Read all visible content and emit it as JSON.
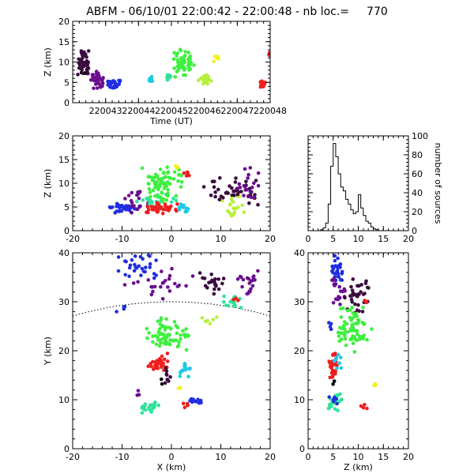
{
  "chart_data": {
    "title": "ABFM - 06/10/01 22:00:42 - 22:00:48 - nb loc.=",
    "nb_loc": "770",
    "type": "scatter",
    "point_marker": "small filled dot",
    "color_scale": "purple → blue → cyan → green → yellow → red by time",
    "colors": {
      "black": "#000000",
      "dark_purple": "#3b0a3d",
      "purple": "#6a0f8e",
      "blue": "#1f2fe0",
      "cyan": "#1ec8e8",
      "teal": "#2fe39a",
      "green": "#3ef03e",
      "yellow_green": "#b6f03a",
      "yellow": "#f0f01e",
      "red": "#f01e1e"
    },
    "panels": [
      {
        "name": "time-height",
        "xlabel": "Time (UT)",
        "ylabel": "Z (km)",
        "xlim": [
          220042,
          220048
        ],
        "ylim": [
          0,
          20
        ],
        "xticks": [
          "220043",
          "220044",
          "220045",
          "220046",
          "220047",
          "220048"
        ],
        "yticks": [
          "0",
          "5",
          "10",
          "15",
          "20"
        ],
        "clusters": [
          {
            "color": "black",
            "x": [
              220042.05,
              220042.5
            ],
            "y": [
              7,
              7.5
            ],
            "n": 3
          },
          {
            "color": "dark_purple",
            "x": [
              220042.1,
              220042.6
            ],
            "y": [
              6,
              13.5
            ],
            "n": 40
          },
          {
            "color": "purple",
            "x": [
              220042.5,
              220043.0
            ],
            "y": [
              3,
              8
            ],
            "n": 35
          },
          {
            "color": "blue",
            "x": [
              220043.0,
              220043.5
            ],
            "y": [
              3.5,
              6
            ],
            "n": 25
          },
          {
            "color": "cyan",
            "x": [
              220044.3,
              220044.45
            ],
            "y": [
              4.5,
              6.5
            ],
            "n": 10
          },
          {
            "color": "teal",
            "x": [
              220044.85,
              220045.0
            ],
            "y": [
              5,
              7.5
            ],
            "n": 10
          },
          {
            "color": "green",
            "x": [
              220045.0,
              220045.7
            ],
            "y": [
              5.5,
              13.5
            ],
            "n": 60
          },
          {
            "color": "yellow_green",
            "x": [
              220045.8,
              220046.3
            ],
            "y": [
              4.5,
              7.5
            ],
            "n": 20
          },
          {
            "color": "yellow",
            "x": [
              220046.2,
              220046.5
            ],
            "y": [
              9,
              13.5
            ],
            "n": 6
          },
          {
            "color": "red",
            "x": [
              220047.7,
              220047.85
            ],
            "y": [
              3.5,
              5.5
            ],
            "n": 20
          },
          {
            "color": "red",
            "x": [
              220047.95,
              220048
            ],
            "y": [
              11,
              12.5
            ],
            "n": 5
          }
        ]
      },
      {
        "name": "x-z",
        "xlabel": "",
        "ylabel": "Z (km)",
        "xlim": [
          -20,
          20
        ],
        "ylim": [
          0,
          20
        ],
        "xticks": [
          "-20",
          "-10",
          "0",
          "10",
          "20"
        ],
        "yticks": [
          "0",
          "5",
          "10",
          "15",
          "20"
        ],
        "clusters": [
          {
            "color": "blue",
            "x": [
              -13,
              -6
            ],
            "y": [
              3.5,
              6
            ],
            "n": 40
          },
          {
            "color": "purple",
            "x": [
              -10,
              -4
            ],
            "y": [
              3.5,
              9
            ],
            "n": 20
          },
          {
            "color": "teal",
            "x": [
              -8,
              2
            ],
            "y": [
              5,
              8
            ],
            "n": 20
          },
          {
            "color": "green",
            "x": [
              -7,
              3
            ],
            "y": [
              6,
              14
            ],
            "n": 70
          },
          {
            "color": "red",
            "x": [
              -6,
              2
            ],
            "y": [
              3.5,
              6
            ],
            "n": 35
          },
          {
            "color": "red",
            "x": [
              2,
              4
            ],
            "y": [
              11,
              12.5
            ],
            "n": 5
          },
          {
            "color": "cyan",
            "x": [
              1,
              4
            ],
            "y": [
              3.5,
              6
            ],
            "n": 12
          },
          {
            "color": "yellow_green",
            "x": [
              10,
              15
            ],
            "y": [
              2.5,
              8
            ],
            "n": 20
          },
          {
            "color": "yellow",
            "x": [
              0,
              2
            ],
            "y": [
              13,
              14
            ],
            "n": 3
          },
          {
            "color": "dark_purple",
            "x": [
              5,
              19
            ],
            "y": [
              5,
              12
            ],
            "n": 40
          },
          {
            "color": "purple",
            "x": [
              12,
              19
            ],
            "y": [
              6,
              14
            ],
            "n": 20
          }
        ]
      },
      {
        "name": "histogram",
        "type": "step",
        "xlabel": "",
        "ylabel": "number of sources",
        "ylabel_side": "right",
        "xlim": [
          0,
          20
        ],
        "ylim": [
          0,
          100
        ],
        "xticks": [
          "0",
          "5",
          "10",
          "15",
          "20"
        ],
        "yticks": [
          "0",
          "20",
          "40",
          "60",
          "80",
          "100"
        ],
        "bin_width": 0.5,
        "bin_start": 2.5,
        "values": [
          1,
          3,
          8,
          28,
          68,
          92,
          78,
          60,
          46,
          42,
          33,
          28,
          22,
          18,
          20,
          38,
          24,
          16,
          10,
          8,
          4,
          2,
          1,
          0
        ]
      },
      {
        "name": "x-y",
        "xlabel": "X (km)",
        "ylabel": "Y (km)",
        "xlim": [
          -20,
          20
        ],
        "ylim": [
          0,
          40
        ],
        "xticks": [
          "-20",
          "-10",
          "0",
          "10",
          "20"
        ],
        "yticks": [
          "0",
          "10",
          "20",
          "30",
          "40"
        ],
        "range_arc": {
          "center": [
            0,
            -40
          ],
          "radius": 70,
          "style": "dotted"
        },
        "clusters": [
          {
            "color": "blue",
            "x": [
              -11,
              -2
            ],
            "y": [
              34,
              40
            ],
            "n": 30
          },
          {
            "color": "purple",
            "x": [
              -10,
              5
            ],
            "y": [
              30,
              38
            ],
            "n": 25
          },
          {
            "color": "blue",
            "x": [
              -12,
              -9
            ],
            "y": [
              27,
              30
            ],
            "n": 4
          },
          {
            "color": "dark_purple",
            "x": [
              5,
              12
            ],
            "y": [
              31,
              36
            ],
            "n": 20
          },
          {
            "color": "purple",
            "x": [
              11,
              19
            ],
            "y": [
              30,
              37
            ],
            "n": 20
          },
          {
            "color": "green",
            "x": [
              -6,
              4
            ],
            "y": [
              19,
              27
            ],
            "n": 70
          },
          {
            "color": "teal",
            "x": [
              9,
              15
            ],
            "y": [
              27,
              32
            ],
            "n": 15
          },
          {
            "color": "yellow_green",
            "x": [
              6,
              10
            ],
            "y": [
              25,
              28
            ],
            "n": 6
          },
          {
            "color": "red",
            "x": [
              -5,
              0
            ],
            "y": [
              15,
              20
            ],
            "n": 30
          },
          {
            "color": "red",
            "x": [
              12,
              14
            ],
            "y": [
              30,
              31
            ],
            "n": 3
          },
          {
            "color": "cyan",
            "x": [
              1,
              4
            ],
            "y": [
              14,
              18
            ],
            "n": 15
          },
          {
            "color": "dark_purple",
            "x": [
              -3,
              1
            ],
            "y": [
              13,
              18
            ],
            "n": 8
          },
          {
            "color": "black",
            "x": [
              -3,
              -1
            ],
            "y": [
              13,
              15
            ],
            "n": 2
          },
          {
            "color": "purple",
            "x": [
              -7,
              -5
            ],
            "y": [
              10,
              12
            ],
            "n": 3
          },
          {
            "color": "teal",
            "x": [
              -7,
              -2
            ],
            "y": [
              7,
              10
            ],
            "n": 20
          },
          {
            "color": "blue",
            "x": [
              3,
              7
            ],
            "y": [
              9,
              11
            ],
            "n": 10
          },
          {
            "color": "red",
            "x": [
              2,
              4
            ],
            "y": [
              8,
              9.5
            ],
            "n": 5
          },
          {
            "color": "yellow",
            "x": [
              1,
              2
            ],
            "y": [
              12,
              13
            ],
            "n": 2
          }
        ]
      },
      {
        "name": "z-y",
        "xlabel": "Z (km)",
        "ylabel": "",
        "xlim": [
          0,
          20
        ],
        "ylim": [
          0,
          40
        ],
        "xticks": [
          "0",
          "5",
          "10",
          "15",
          "20"
        ],
        "yticks": [
          "0",
          "10",
          "20",
          "30",
          "40"
        ],
        "clusters": [
          {
            "color": "blue",
            "x": [
              4.5,
              7
            ],
            "y": [
              33,
              40
            ],
            "n": 30
          },
          {
            "color": "purple",
            "x": [
              4,
              8
            ],
            "y": [
              29,
              35
            ],
            "n": 20
          },
          {
            "color": "dark_purple",
            "x": [
              7,
              13
            ],
            "y": [
              27,
              35
            ],
            "n": 35
          },
          {
            "color": "green",
            "x": [
              5,
              13
            ],
            "y": [
              19,
              30
            ],
            "n": 70
          },
          {
            "color": "teal",
            "x": [
              4,
              7
            ],
            "y": [
              7,
              12
            ],
            "n": 20
          },
          {
            "color": "red",
            "x": [
              4,
              6
            ],
            "y": [
              14,
              20
            ],
            "n": 30
          },
          {
            "color": "blue",
            "x": [
              4,
              6
            ],
            "y": [
              9,
              11
            ],
            "n": 8
          },
          {
            "color": "blue",
            "x": [
              4,
              5
            ],
            "y": [
              24,
              27
            ],
            "n": 4
          },
          {
            "color": "red",
            "x": [
              10,
              12
            ],
            "y": [
              8,
              9.5
            ],
            "n": 4
          },
          {
            "color": "yellow",
            "x": [
              13,
              14
            ],
            "y": [
              12.5,
              13.5
            ],
            "n": 3
          },
          {
            "color": "cyan",
            "x": [
              5,
              7
            ],
            "y": [
              16,
              20
            ],
            "n": 8
          },
          {
            "color": "red",
            "x": [
              11,
              12
            ],
            "y": [
              29,
              31
            ],
            "n": 3
          },
          {
            "color": "black",
            "x": [
              4.5,
              5.5
            ],
            "y": [
              13,
              14
            ],
            "n": 2
          }
        ]
      }
    ]
  }
}
